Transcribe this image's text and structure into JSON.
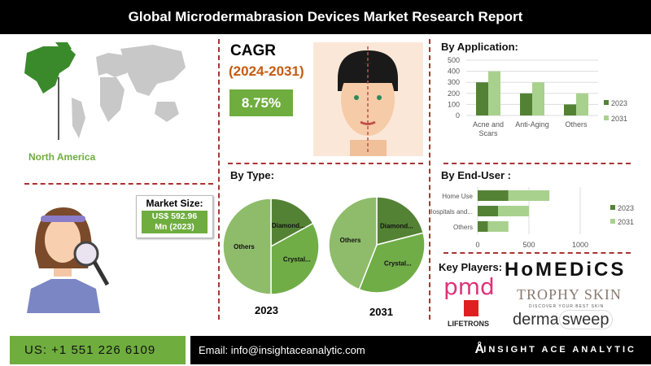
{
  "header": {
    "title": "Global Microdermabrasion Devices Market Research Report"
  },
  "region": {
    "label": "North America"
  },
  "cagr": {
    "title": "CAGR",
    "period": "(2024-2031)",
    "value": "8.75%"
  },
  "market_size": {
    "title": "Market Size:",
    "value_line1": "US$ 592.96",
    "value_line2": "Mn (2023)"
  },
  "colors": {
    "dark_green": "#548235",
    "light_green": "#a9d18e",
    "mid_green": "#70ad47",
    "pie_light": "#8fbc6b",
    "accent_red": "#a33333",
    "cagr_period": "#c55a11"
  },
  "chart_data": [
    {
      "type": "bar",
      "title": "By Application:",
      "categories": [
        "Acne and Scars",
        "Anti-Aging",
        "Others"
      ],
      "series": [
        {
          "name": "2023",
          "values": [
            300,
            200,
            100
          ]
        },
        {
          "name": "2031",
          "values": [
            400,
            300,
            200
          ]
        }
      ],
      "ylim": [
        0,
        500
      ],
      "yticks": [
        "0",
        "100",
        "200",
        "300",
        "400",
        "500"
      ],
      "grid": true,
      "legend": "right"
    },
    {
      "type": "bar",
      "orientation": "horizontal",
      "stacked": true,
      "title": "By End-User :",
      "categories": [
        "Home Use",
        "Hospitals and...",
        "Others"
      ],
      "series": [
        {
          "name": "2023",
          "values": [
            300,
            200,
            100
          ]
        },
        {
          "name": "2031",
          "values": [
            400,
            300,
            200
          ]
        }
      ],
      "xlim": [
        0,
        1000
      ],
      "xticks": [
        "0",
        "500",
        "1000"
      ],
      "grid": true,
      "legend": "right"
    },
    {
      "type": "pie",
      "title": "By Type:",
      "pies": [
        {
          "label": "2023",
          "slices": [
            {
              "name": "Diamond...",
              "value": 17
            },
            {
              "name": "Crystal...",
              "value": 33
            },
            {
              "name": "Others",
              "value": 50
            }
          ]
        },
        {
          "label": "2031",
          "slices": [
            {
              "name": "Diamond...",
              "value": 21
            },
            {
              "name": "Crystal...",
              "value": 35
            },
            {
              "name": "Others",
              "value": 44
            }
          ]
        }
      ]
    }
  ],
  "key_players": {
    "title": "Key Players:",
    "logos": [
      "HoMEDiCS",
      "pmd",
      "TROPHY SKIN",
      "DISCOVER YOUR BEST SKIN",
      "LIFETRONS",
      "dermasweep"
    ]
  },
  "footer": {
    "phone": "US: +1 551 226 6109",
    "email": "Email: info@insightaceanalytic.com",
    "brand": "INSIGHT ACE ANALYTIC"
  }
}
